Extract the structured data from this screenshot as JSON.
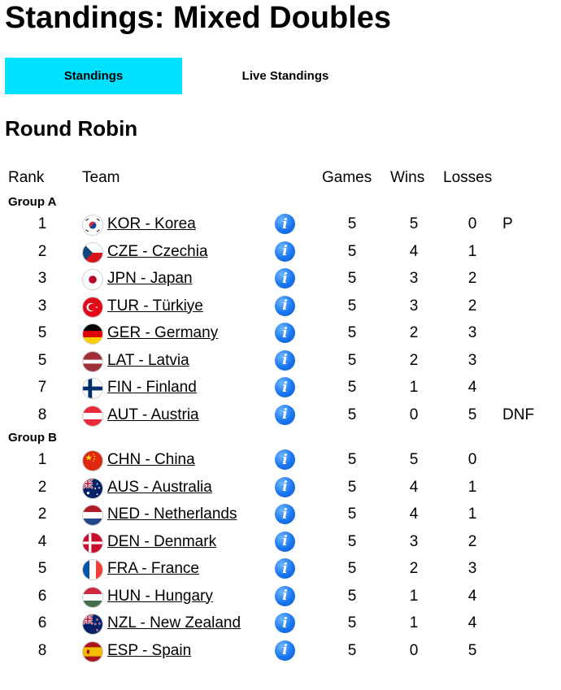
{
  "page": {
    "title": "Standings: Mixed Doubles"
  },
  "tabs": [
    {
      "label": "Standings",
      "active": true
    },
    {
      "label": "Live Standings",
      "active": false
    }
  ],
  "section": {
    "title": "Round Robin"
  },
  "columns": {
    "rank": "Rank",
    "team": "Team",
    "games": "Games",
    "wins": "Wins",
    "losses": "Losses"
  },
  "colors": {
    "active_tab": "#00e1ff",
    "info_icon": "#1976f0"
  },
  "groups": [
    {
      "name": "Group A",
      "rows": [
        {
          "rank": "1",
          "flag": "kor",
          "team": "KOR - Korea",
          "info_icon": "info-icon",
          "games": "5",
          "wins": "5",
          "losses": "0",
          "status": "P"
        },
        {
          "rank": "2",
          "flag": "cze",
          "team": "CZE - Czechia",
          "info_icon": "info-icon",
          "games": "5",
          "wins": "4",
          "losses": "1",
          "status": ""
        },
        {
          "rank": "3",
          "flag": "jpn",
          "team": "JPN - Japan",
          "info_icon": "info-icon",
          "games": "5",
          "wins": "3",
          "losses": "2",
          "status": ""
        },
        {
          "rank": "3",
          "flag": "tur",
          "team": "TUR - Türkiye",
          "info_icon": "info-icon",
          "games": "5",
          "wins": "3",
          "losses": "2",
          "status": ""
        },
        {
          "rank": "5",
          "flag": "ger",
          "team": "GER - Germany",
          "info_icon": "info-icon",
          "games": "5",
          "wins": "2",
          "losses": "3",
          "status": ""
        },
        {
          "rank": "5",
          "flag": "lat",
          "team": "LAT - Latvia",
          "info_icon": "info-icon",
          "games": "5",
          "wins": "2",
          "losses": "3",
          "status": ""
        },
        {
          "rank": "7",
          "flag": "fin",
          "team": "FIN - Finland",
          "info_icon": "info-icon",
          "games": "5",
          "wins": "1",
          "losses": "4",
          "status": ""
        },
        {
          "rank": "8",
          "flag": "aut",
          "team": "AUT - Austria",
          "info_icon": "info-icon",
          "games": "5",
          "wins": "0",
          "losses": "5",
          "status": "DNF"
        }
      ]
    },
    {
      "name": "Group B",
      "rows": [
        {
          "rank": "1",
          "flag": "chn",
          "team": "CHN - China",
          "info_icon": "info-icon",
          "games": "5",
          "wins": "5",
          "losses": "0",
          "status": ""
        },
        {
          "rank": "2",
          "flag": "aus",
          "team": "AUS - Australia",
          "info_icon": "info-icon",
          "games": "5",
          "wins": "4",
          "losses": "1",
          "status": ""
        },
        {
          "rank": "2",
          "flag": "ned",
          "team": "NED - Netherlands",
          "info_icon": "info-icon",
          "games": "5",
          "wins": "4",
          "losses": "1",
          "status": ""
        },
        {
          "rank": "4",
          "flag": "den",
          "team": "DEN - Denmark",
          "info_icon": "info-icon",
          "games": "5",
          "wins": "3",
          "losses": "2",
          "status": ""
        },
        {
          "rank": "5",
          "flag": "fra",
          "team": "FRA - France",
          "info_icon": "info-icon",
          "games": "5",
          "wins": "2",
          "losses": "3",
          "status": ""
        },
        {
          "rank": "6",
          "flag": "hun",
          "team": "HUN - Hungary",
          "info_icon": "info-icon",
          "games": "5",
          "wins": "1",
          "losses": "4",
          "status": ""
        },
        {
          "rank": "6",
          "flag": "nzl",
          "team": "NZL - New Zealand",
          "info_icon": "info-icon",
          "games": "5",
          "wins": "1",
          "losses": "4",
          "status": ""
        },
        {
          "rank": "8",
          "flag": "esp",
          "team": "ESP - Spain",
          "info_icon": "info-icon",
          "games": "5",
          "wins": "0",
          "losses": "5",
          "status": ""
        }
      ]
    }
  ]
}
